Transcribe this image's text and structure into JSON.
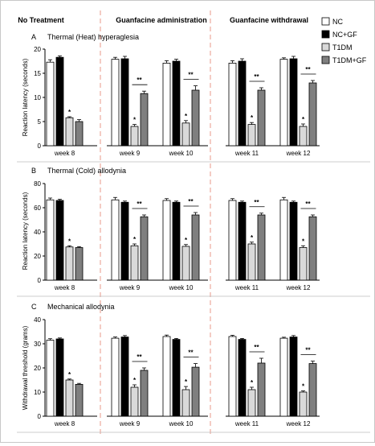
{
  "phases": [
    "No Treatment",
    "Guanfacine administration",
    "Guanfacine withdrawal"
  ],
  "legend": [
    {
      "label": "NC",
      "color": "#ffffff"
    },
    {
      "label": "NC+GF",
      "color": "#000000"
    },
    {
      "label": "T1DM",
      "color": "#d9d9d9"
    },
    {
      "label": "T1DM+GF",
      "color": "#7f7f7f"
    }
  ],
  "colors": {
    "divider": "#e89a8a",
    "axis": "#000000",
    "border": "#c8c8c8"
  },
  "chart_data": [
    {
      "type": "bar",
      "panel_letter": "A",
      "title": "Thermal (Heat) hyperaglesia",
      "ylabel": "Reaction latency (seconds)",
      "ylim": [
        0,
        20
      ],
      "yticks": [
        0,
        5,
        10,
        15,
        20
      ],
      "categories": [
        "week 8",
        "week 9",
        "week 10",
        "week 11",
        "week 12"
      ],
      "series": [
        {
          "name": "NC",
          "values": [
            17.3,
            17.9,
            17.1,
            17.1,
            17.9
          ],
          "errors": [
            0.5,
            0.4,
            0.5,
            0.5,
            0.3
          ]
        },
        {
          "name": "NC+GF",
          "values": [
            18.3,
            18.0,
            17.5,
            17.5,
            18.0
          ],
          "errors": [
            0.3,
            0.5,
            0.4,
            0.5,
            0.5
          ]
        },
        {
          "name": "T1DM",
          "values": [
            5.8,
            4.0,
            4.7,
            4.4,
            4.0
          ],
          "errors": [
            0.2,
            0.4,
            0.5,
            0.4,
            0.5
          ]
        },
        {
          "name": "T1DM+GF",
          "values": [
            5.0,
            10.8,
            11.5,
            11.5,
            13.0
          ],
          "errors": [
            0.4,
            0.5,
            0.9,
            0.5,
            0.5
          ]
        }
      ],
      "annotations": {
        "single": "*",
        "double": "**"
      }
    },
    {
      "type": "bar",
      "panel_letter": "B",
      "title": "Thermal (Cold) allodynia",
      "ylabel": "Reaction latency (seconds)",
      "ylim": [
        0,
        80
      ],
      "yticks": [
        0,
        20,
        40,
        60,
        80
      ],
      "categories": [
        "week 8",
        "week 9",
        "week 10",
        "week 11",
        "week 12"
      ],
      "series": [
        {
          "name": "NC",
          "values": [
            66.5,
            66.5,
            66.0,
            66.0,
            66.5
          ],
          "errors": [
            1.5,
            2.0,
            1.5,
            1.5,
            2.0
          ]
        },
        {
          "name": "NC+GF",
          "values": [
            66.0,
            64.5,
            64.5,
            64.5,
            64.5
          ],
          "errors": [
            1.0,
            1.0,
            1.0,
            1.0,
            1.0
          ]
        },
        {
          "name": "T1DM",
          "values": [
            27.5,
            28.5,
            28.0,
            30.0,
            27.0
          ],
          "errors": [
            1.0,
            1.5,
            1.5,
            1.5,
            1.5
          ]
        },
        {
          "name": "T1DM+GF",
          "values": [
            27.0,
            52.5,
            54.0,
            54.0,
            52.5
          ],
          "errors": [
            0.8,
            1.5,
            2.0,
            1.5,
            1.5
          ]
        }
      ],
      "annotations": {
        "single": "*",
        "double": "**"
      }
    },
    {
      "type": "bar",
      "panel_letter": "C",
      "title": "Mechanical allodynia",
      "ylabel": "Withdrawal threshold (grams)",
      "ylim": [
        0,
        40
      ],
      "yticks": [
        0,
        10,
        20,
        30,
        40
      ],
      "categories": [
        "week 8",
        "week 9",
        "week 10",
        "week 11",
        "week 12"
      ],
      "series": [
        {
          "name": "NC",
          "values": [
            31.5,
            32.3,
            33.0,
            33.0,
            32.3
          ],
          "errors": [
            0.6,
            0.5,
            0.6,
            0.5,
            0.4
          ]
        },
        {
          "name": "NC+GF",
          "values": [
            32.0,
            32.8,
            31.8,
            31.8,
            32.8
          ],
          "errors": [
            0.4,
            0.6,
            0.4,
            0.4,
            0.6
          ]
        },
        {
          "name": "T1DM",
          "values": [
            15.0,
            12.0,
            11.0,
            11.0,
            10.0
          ],
          "errors": [
            0.4,
            1.0,
            1.3,
            1.0,
            0.5
          ]
        },
        {
          "name": "T1DM+GF",
          "values": [
            13.2,
            19.0,
            20.3,
            22.0,
            21.8
          ],
          "errors": [
            0.4,
            1.0,
            1.5,
            2.0,
            1.0
          ]
        }
      ],
      "annotations": {
        "single": "*",
        "double": "**"
      }
    }
  ]
}
